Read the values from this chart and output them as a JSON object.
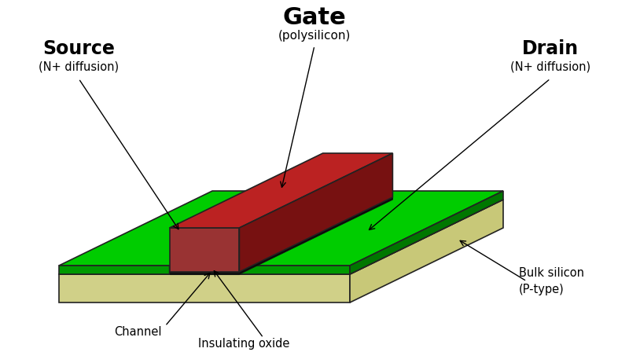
{
  "background_color": "#ffffff",
  "labels": {
    "gate": "Gate",
    "gate_sub": "(polysilicon)",
    "source": "Source",
    "source_sub": "(N+ diffusion)",
    "drain": "Drain",
    "drain_sub": "(N+ diffusion)",
    "bulk": "Bulk silicon\n(P-type)",
    "channel": "Channel",
    "insulating_oxide": "Insulating oxide"
  },
  "colors": {
    "bulk_top": "#e8e8a8",
    "bulk_front": "#d0d088",
    "bulk_right": "#c8c878",
    "ndiff_top": "#00cc00",
    "ndiff_front": "#009900",
    "ndiff_right": "#007700",
    "gate_top": "#bb2222",
    "gate_front": "#993333",
    "gate_right": "#771111",
    "oxide_top": "#1a1a1a",
    "oxide_front": "#111111",
    "oxide_right": "#0a0a0a"
  },
  "figsize": [
    8.0,
    4.62
  ],
  "dpi": 100
}
